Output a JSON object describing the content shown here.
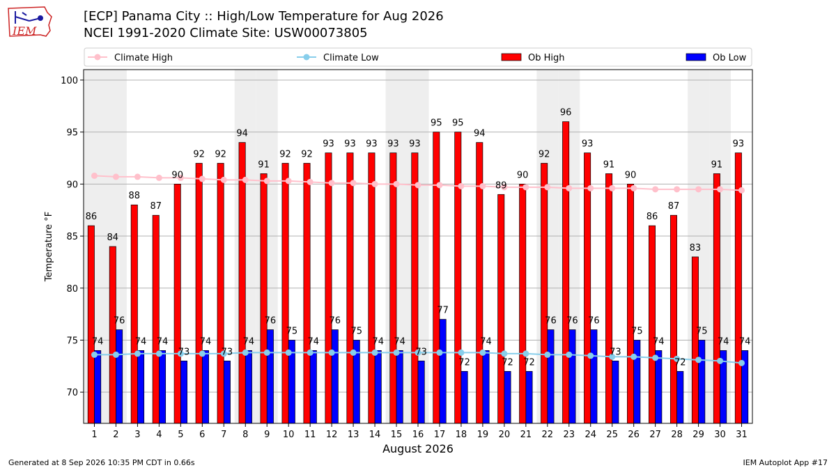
{
  "header": {
    "title_line1": "[ECP] Panama City :: High/Low Temperature for Aug 2026",
    "title_line2": "NCEI 1991-2020 Climate Site: USW00073805",
    "logo_text": "IEM"
  },
  "footer": {
    "left": "Generated at 8 Sep 2026 10:35 PM CDT in 0.66s",
    "right": "IEM Autoplot App #17"
  },
  "colors": {
    "ob_high": "#ff0000",
    "ob_low": "#0000ff",
    "climate_high": "#ffc0cb",
    "climate_low": "#87ceeb",
    "weekend_band": "#eeeeee",
    "logo_red": "#cc2222",
    "logo_blue": "#1a1aa0"
  },
  "chart_data": {
    "type": "bar",
    "xlabel": "August 2026",
    "ylabel": "Temperature °F",
    "ylim": [
      67,
      101
    ],
    "yticks": [
      70,
      75,
      80,
      85,
      90,
      95,
      100
    ],
    "grid": "horizontal",
    "legend_placement": "top",
    "legend": [
      "Climate High",
      "Climate Low",
      "Ob High",
      "Ob Low"
    ],
    "categories": [
      "1",
      "2",
      "3",
      "4",
      "5",
      "6",
      "7",
      "8",
      "9",
      "10",
      "11",
      "12",
      "13",
      "14",
      "15",
      "16",
      "17",
      "18",
      "19",
      "20",
      "21",
      "22",
      "23",
      "24",
      "25",
      "26",
      "27",
      "28",
      "29",
      "30",
      "31"
    ],
    "shaded_days": [
      1,
      2,
      8,
      9,
      15,
      16,
      22,
      23,
      29,
      30
    ],
    "series": [
      {
        "name": "Ob High",
        "kind": "bar",
        "values": [
          86,
          84,
          88,
          87,
          90,
          92,
          92,
          94,
          91,
          92,
          92,
          93,
          93,
          93,
          93,
          93,
          95,
          95,
          94,
          89,
          90,
          92,
          96,
          93,
          91,
          90,
          86,
          87,
          83,
          91,
          93
        ]
      },
      {
        "name": "Ob Low",
        "kind": "bar",
        "values": [
          74,
          76,
          74,
          74,
          73,
          74,
          73,
          74,
          76,
          75,
          74,
          76,
          75,
          74,
          74,
          73,
          77,
          72,
          74,
          72,
          72,
          76,
          76,
          76,
          73,
          75,
          74,
          72,
          75,
          74,
          74
        ]
      },
      {
        "name": "Climate High",
        "kind": "line",
        "values": [
          90.8,
          90.7,
          90.7,
          90.6,
          90.6,
          90.5,
          90.4,
          90.4,
          90.3,
          90.3,
          90.2,
          90.1,
          90.1,
          90.0,
          90.0,
          89.9,
          89.9,
          89.8,
          89.8,
          89.7,
          89.7,
          89.7,
          89.6,
          89.6,
          89.6,
          89.6,
          89.5,
          89.5,
          89.5,
          89.5,
          89.4
        ]
      },
      {
        "name": "Climate Low",
        "kind": "line",
        "values": [
          73.6,
          73.6,
          73.7,
          73.7,
          73.7,
          73.7,
          73.7,
          73.8,
          73.8,
          73.8,
          73.8,
          73.8,
          73.8,
          73.8,
          73.8,
          73.8,
          73.8,
          73.8,
          73.8,
          73.7,
          73.7,
          73.6,
          73.6,
          73.5,
          73.4,
          73.4,
          73.3,
          73.2,
          73.1,
          73.0,
          72.8
        ]
      }
    ]
  }
}
